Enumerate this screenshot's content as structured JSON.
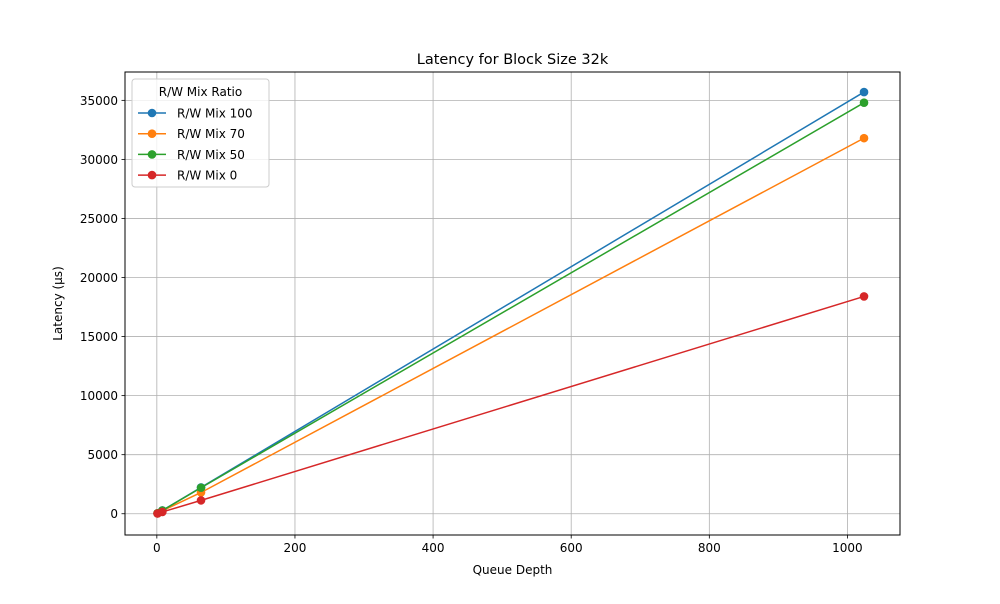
{
  "chart_data": {
    "type": "line",
    "title": "Latency for Block Size 32k",
    "xlabel": "Queue Depth",
    "ylabel": "Latency (µs)",
    "xlim": [
      -46.1,
      1076.1
    ],
    "ylim": [
      -1800,
      37400
    ],
    "xticks": [
      0,
      200,
      400,
      600,
      800,
      1000
    ],
    "yticks": [
      0,
      5000,
      10000,
      15000,
      20000,
      25000,
      30000,
      35000
    ],
    "grid": true,
    "legend": {
      "title": "R/W Mix Ratio",
      "placement": "top-left"
    },
    "series": [
      {
        "name": "R/W Mix 100",
        "color": "#1f77b4",
        "x": [
          1,
          8,
          64,
          1024
        ],
        "y": [
          40,
          280,
          2230,
          35700
        ]
      },
      {
        "name": "R/W Mix 70",
        "color": "#ff7f0e",
        "x": [
          1,
          8,
          64,
          1024
        ],
        "y": [
          35,
          250,
          1800,
          31800
        ]
      },
      {
        "name": "R/W Mix 50",
        "color": "#2ca02c",
        "x": [
          1,
          8,
          64,
          1024
        ],
        "y": [
          38,
          275,
          2200,
          34800
        ]
      },
      {
        "name": "R/W Mix 0",
        "color": "#d62728",
        "x": [
          1,
          8,
          64,
          1024
        ],
        "y": [
          20,
          150,
          1130,
          18400
        ]
      }
    ]
  }
}
